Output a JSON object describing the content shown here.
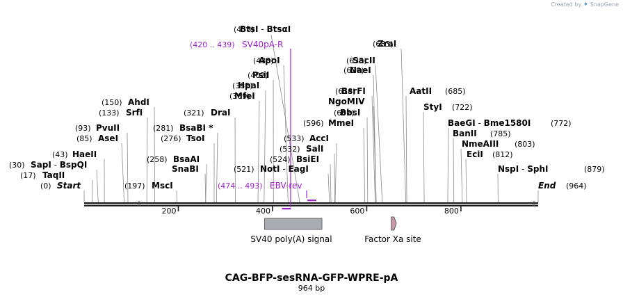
{
  "header": {
    "credit_prefix": "Created by",
    "brand": "SnapGene"
  },
  "title": "CAG-BFP-sesRNA-GFP-WPRE-pA",
  "length_label": "964 bp",
  "scale": {
    "start": 0,
    "end": 964,
    "ticks": [
      200,
      400,
      600,
      800
    ]
  },
  "ends": {
    "start": {
      "pos": "(0)",
      "label": "Start"
    },
    "end": {
      "pos": "(964)",
      "label": "End"
    }
  },
  "sites": [
    {
      "id": "btsi",
      "pos": "(458)",
      "labels": [
        "BtsI",
        "BtsαI"
      ],
      "joiner": "-",
      "loc": 458
    },
    {
      "id": "zrai",
      "pos": "(683)",
      "labels": [
        "ZraI"
      ],
      "loc": 683
    },
    {
      "id": "apoi",
      "pos": "(433)",
      "labels": [
        "ApoI"
      ],
      "loc": 433
    },
    {
      "id": "sacii",
      "pos": "(633)",
      "labels": [
        "SacII"
      ],
      "loc": 633
    },
    {
      "id": "naei",
      "pos": "(620)",
      "labels": [
        "NaeI"
      ],
      "loc": 620
    },
    {
      "id": "psii",
      "pos": "(402)",
      "labels": [
        "PsiI"
      ],
      "loc": 402
    },
    {
      "id": "hpai",
      "pos": "(382)",
      "labels": [
        "HpaI"
      ],
      "loc": 382
    },
    {
      "id": "mfei",
      "pos": "(369)",
      "labels": [
        "MfeI"
      ],
      "loc": 369
    },
    {
      "id": "bsrfi",
      "pos": "(618)",
      "labels": [
        "BsrFI"
      ],
      "loc": 618
    },
    {
      "id": "aatii",
      "pos": "(685)",
      "labels": [
        "AatII"
      ],
      "loc": 685
    },
    {
      "id": "ahdi",
      "pos": "(150)",
      "labels": [
        "AhdI"
      ],
      "loc": 150
    },
    {
      "id": "ngomiv",
      "pos": "",
      "labels": [
        "NgoMIV"
      ],
      "loc": 620
    },
    {
      "id": "srfi",
      "pos": "(133)",
      "labels": [
        "SrfI"
      ],
      "loc": 133
    },
    {
      "id": "drai",
      "pos": "(321)",
      "labels": [
        "DraI"
      ],
      "loc": 321
    },
    {
      "id": "bbsi",
      "pos": "(602)",
      "labels": [
        "BbsI"
      ],
      "loc": 602
    },
    {
      "id": "styi",
      "pos": "(722)",
      "labels": [
        "StyI"
      ],
      "loc": 722
    },
    {
      "id": "mmei",
      "pos": "(596)",
      "labels": [
        "MmeI"
      ],
      "loc": 596
    },
    {
      "id": "bsabi",
      "pos": "(281)",
      "labels": [
        "BsaBI *"
      ],
      "loc": 281
    },
    {
      "id": "pvuii",
      "pos": "(93)",
      "labels": [
        "PvuII"
      ],
      "loc": 93
    },
    {
      "id": "baegi",
      "pos": "",
      "labels": [
        "BaeGI",
        "Bme1580I"
      ],
      "joiner": "-",
      "loc": 772
    },
    {
      "id": "baegi_pos",
      "pos": "(772)",
      "labels": [],
      "loc": 772
    },
    {
      "id": "tsoi",
      "pos": "(276)",
      "labels": [
        "TsoI"
      ],
      "loc": 276
    },
    {
      "id": "asei",
      "pos": "(85)",
      "labels": [
        "AseI"
      ],
      "loc": 85
    },
    {
      "id": "banii",
      "pos": "(785)",
      "labels": [
        "BanII"
      ],
      "loc": 785
    },
    {
      "id": "acci",
      "pos": "(533)",
      "labels": [
        "AccI"
      ],
      "loc": 533
    },
    {
      "id": "nmeaiii",
      "pos": "(803)",
      "labels": [
        "NmeAIII"
      ],
      "loc": 803
    },
    {
      "id": "sali",
      "pos": "(532)",
      "labels": [
        "SalI"
      ],
      "loc": 532
    },
    {
      "id": "haeii",
      "pos": "(43)",
      "labels": [
        "HaeII"
      ],
      "loc": 43
    },
    {
      "id": "ecii",
      "pos": "(812)",
      "labels": [
        "EciI"
      ],
      "loc": 812
    },
    {
      "id": "bsaai",
      "pos": "(258)",
      "labels": [
        "BsaAI"
      ],
      "loc": 258
    },
    {
      "id": "bsiei",
      "pos": "(524)",
      "labels": [
        "BsiEI"
      ],
      "loc": 524
    },
    {
      "id": "sapi",
      "pos": "(30)",
      "labels": [
        "SapI",
        "BspQI"
      ],
      "joiner": "-",
      "loc": 30
    },
    {
      "id": "snabi",
      "pos": "",
      "labels": [
        "SnaBI"
      ],
      "loc": 258
    },
    {
      "id": "noti",
      "pos": "(521)",
      "labels": [
        "NotI",
        "EagI"
      ],
      "joiner": "-",
      "loc": 521
    },
    {
      "id": "nspi",
      "pos": "",
      "labels": [
        "NspI",
        "SphI"
      ],
      "joiner": "-",
      "loc": 879
    },
    {
      "id": "nspi_pos",
      "pos": "(879)",
      "labels": [],
      "loc": 879
    },
    {
      "id": "taqii",
      "pos": "(17)",
      "labels": [
        "TaqII"
      ],
      "loc": 17
    },
    {
      "id": "msci",
      "pos": "(197)",
      "labels": [
        "MscI"
      ],
      "loc": 197
    }
  ],
  "primers": [
    {
      "id": "sv40pa_r",
      "range": "(420 .. 439)",
      "name": "SV40pA-R",
      "from": 420,
      "to": 439,
      "direction": "reverse"
    },
    {
      "id": "ebv_rev",
      "range": "(474 .. 493)",
      "name": "EBV-rev",
      "from": 474,
      "to": 493,
      "direction": "reverse"
    }
  ],
  "features": [
    {
      "id": "sv40_polya",
      "name": "SV40 poly(A) signal",
      "from": 383,
      "to": 505,
      "color": "#a8acb0",
      "type": "box"
    },
    {
      "id": "factor_xa",
      "name": "Factor Xa site",
      "from": 652,
      "to": 663,
      "color": "#c79aa8",
      "type": "arrow"
    }
  ],
  "colors": {
    "primer": "#a020d0",
    "feature_box": "#a8acb0",
    "factor_xa": "#c79aa8",
    "backbone": "#1a1a1a"
  }
}
